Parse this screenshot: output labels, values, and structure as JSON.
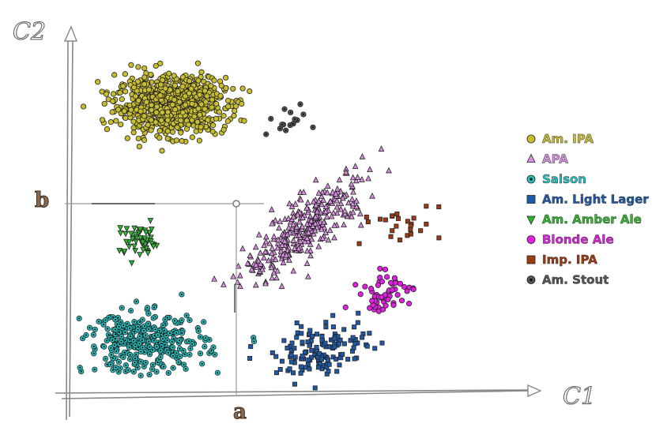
{
  "chart_data": {
    "type": "scatter",
    "xlabel": "C1",
    "ylabel": "C2",
    "marks": {
      "x": "a",
      "y": "b"
    },
    "series": [
      {
        "name": "Am. IPA",
        "color": "#c8bd2e",
        "marker": "circle",
        "n": 900,
        "cx": 2.3,
        "cy": 8.35,
        "sx": 0.62,
        "sy": 0.4,
        "rho": 0.0
      },
      {
        "name": "APA",
        "color": "#d98fe0",
        "marker": "triangle-up",
        "n": 330,
        "cx": 5.4,
        "cy": 4.8,
        "sx": 0.7,
        "sy": 0.75,
        "rho": 0.82
      },
      {
        "name": "Saison",
        "color": "#22c4c4",
        "marker": "circle-dot",
        "n": 330,
        "cx": 1.7,
        "cy": 1.5,
        "sx": 0.7,
        "sy": 0.42,
        "rho": 0.0
      },
      {
        "name": "Am. Light Lager",
        "color": "#1e5aa8",
        "marker": "square",
        "n": 140,
        "cx": 5.8,
        "cy": 1.3,
        "sx": 0.55,
        "sy": 0.38,
        "rho": 0.3
      },
      {
        "name": "Am. Amber Ale",
        "color": "#2fb82f",
        "marker": "triangle-down",
        "n": 55,
        "cx": 1.6,
        "cy": 4.4,
        "sx": 0.25,
        "sy": 0.25,
        "rho": 0.0
      },
      {
        "name": "Blonde Ale",
        "color": "#e020e0",
        "marker": "circle",
        "n": 55,
        "cx": 7.25,
        "cy": 2.95,
        "sx": 0.3,
        "sy": 0.28,
        "rho": 0.2
      },
      {
        "name": "Imp. IPA",
        "color": "#9c3a12",
        "marker": "square",
        "n": 25,
        "cx": 7.5,
        "cy": 4.9,
        "sx": 0.5,
        "sy": 0.3,
        "rho": 0.0
      },
      {
        "name": "Am. Stout",
        "color": "#555555",
        "marker": "circle-dot",
        "n": 15,
        "cx": 4.9,
        "cy": 7.9,
        "sx": 0.3,
        "sy": 0.2,
        "rho": 0.0
      }
    ],
    "xlim": [
      0,
      10
    ],
    "ylim": [
      0,
      10
    ],
    "point_a_x": 3.8,
    "point_b_y": 5.5,
    "grid": false,
    "legend": "right"
  }
}
